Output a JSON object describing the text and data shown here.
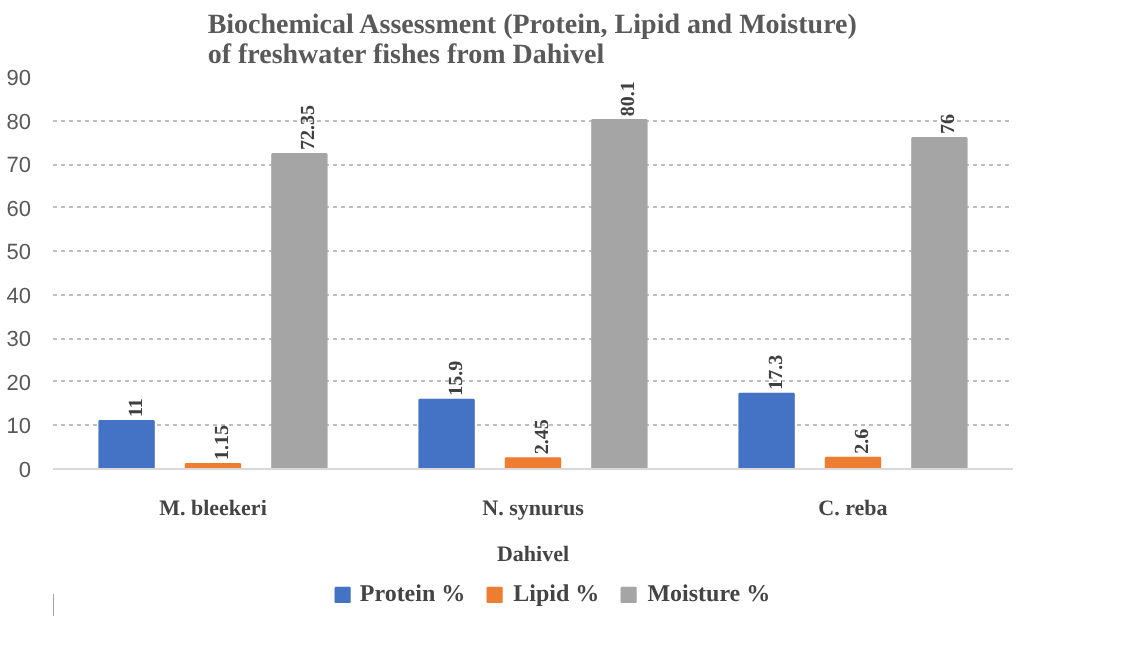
{
  "chart_data": {
    "type": "bar",
    "title": "Biochemical Assessment (Protein, Lipid and Moisture) of freshwater fishes from Dahivel",
    "categories": [
      "M. bleekeri",
      "N. synurus",
      "C. reba"
    ],
    "xlabel": "Dahivel",
    "series": [
      {
        "name": "Protein %",
        "color": "#4472c4",
        "values": [
          11,
          15.9,
          17.3
        ]
      },
      {
        "name": "Lipid %",
        "color": "#ed7d31",
        "values": [
          1.15,
          2.45,
          2.6
        ]
      },
      {
        "name": "Moisture %",
        "color": "#a5a5a5",
        "values": [
          72.35,
          80.1,
          76
        ]
      }
    ],
    "ylim": [
      0,
      90
    ],
    "yticks": [
      0,
      10,
      20,
      30,
      40,
      50,
      60,
      70,
      80,
      90
    ],
    "grid": "y",
    "legend": "bottom",
    "data_labels": true
  }
}
